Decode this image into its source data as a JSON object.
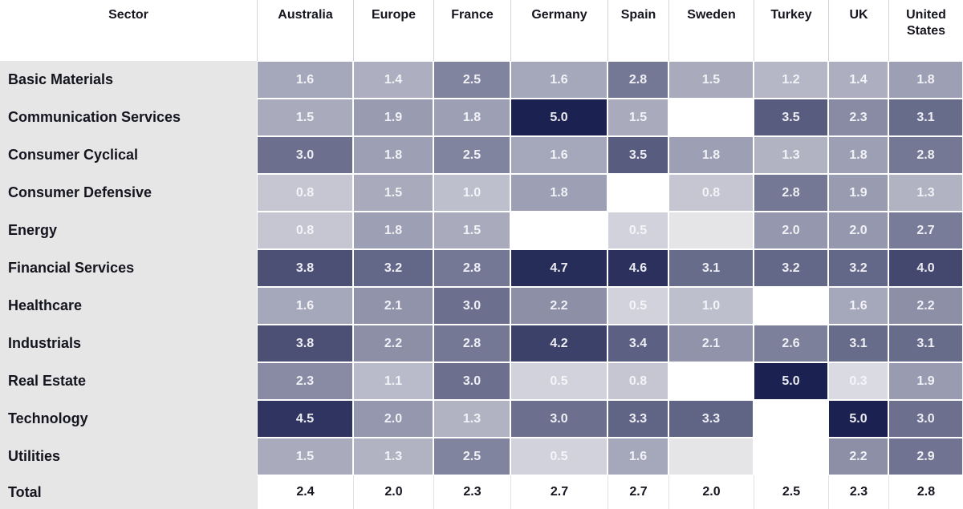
{
  "chart_data": {
    "type": "heatmap",
    "corner_label": "Sector",
    "columns": [
      "Australia",
      "Europe",
      "France",
      "Germany",
      "Spain",
      "Sweden",
      "Turkey",
      "UK",
      "United States"
    ],
    "rows": [
      {
        "label": "Basic Materials",
        "values": [
          1.6,
          1.4,
          2.5,
          1.6,
          2.8,
          1.5,
          1.2,
          1.4,
          1.8
        ]
      },
      {
        "label": "Communication Services",
        "values": [
          1.5,
          1.9,
          1.8,
          5.0,
          1.5,
          null,
          3.5,
          2.3,
          3.1
        ]
      },
      {
        "label": "Consumer Cyclical",
        "values": [
          3.0,
          1.8,
          2.5,
          1.6,
          3.5,
          1.8,
          1.3,
          1.8,
          2.8
        ]
      },
      {
        "label": "Consumer Defensive",
        "values": [
          0.8,
          1.5,
          1.0,
          1.8,
          null,
          0.8,
          2.8,
          1.9,
          1.3
        ]
      },
      {
        "label": "Energy",
        "values": [
          0.8,
          1.8,
          1.5,
          null,
          0.5,
          "blank",
          2.0,
          2.0,
          2.7
        ]
      },
      {
        "label": "Financial Services",
        "values": [
          3.8,
          3.2,
          2.8,
          4.7,
          4.6,
          3.1,
          3.2,
          3.2,
          4.0
        ]
      },
      {
        "label": "Healthcare",
        "values": [
          1.6,
          2.1,
          3.0,
          2.2,
          0.5,
          1.0,
          null,
          1.6,
          2.2
        ]
      },
      {
        "label": "Industrials",
        "values": [
          3.8,
          2.2,
          2.8,
          4.2,
          3.4,
          2.1,
          2.6,
          3.1,
          3.1
        ]
      },
      {
        "label": "Real Estate",
        "values": [
          2.3,
          1.1,
          3.0,
          0.5,
          0.8,
          null,
          5.0,
          0.3,
          1.9
        ]
      },
      {
        "label": "Technology",
        "values": [
          4.5,
          2.0,
          1.3,
          3.0,
          3.3,
          3.3,
          null,
          5.0,
          3.0
        ]
      },
      {
        "label": "Utilities",
        "values": [
          1.5,
          1.3,
          2.5,
          0.5,
          1.6,
          "blank",
          null,
          2.2,
          2.9
        ]
      }
    ],
    "total": {
      "label": "Total",
      "values": [
        2.4,
        2.0,
        2.3,
        2.7,
        2.7,
        2.0,
        2.5,
        2.3,
        2.8
      ]
    },
    "value_range": [
      0,
      5
    ],
    "value_decimals": 1,
    "legend_position": "none",
    "grid": false
  },
  "colors": {
    "scale_low": "#e6e6ec",
    "scale_high": "#1b2150",
    "empty_cell": "#ffffff",
    "blank_gray_cell": "#e5e5e8",
    "sector_column_bg": "#e6e6e6",
    "header_text": "#15151f",
    "cell_text": "#f5f6fa",
    "total_text": "#15151f"
  }
}
